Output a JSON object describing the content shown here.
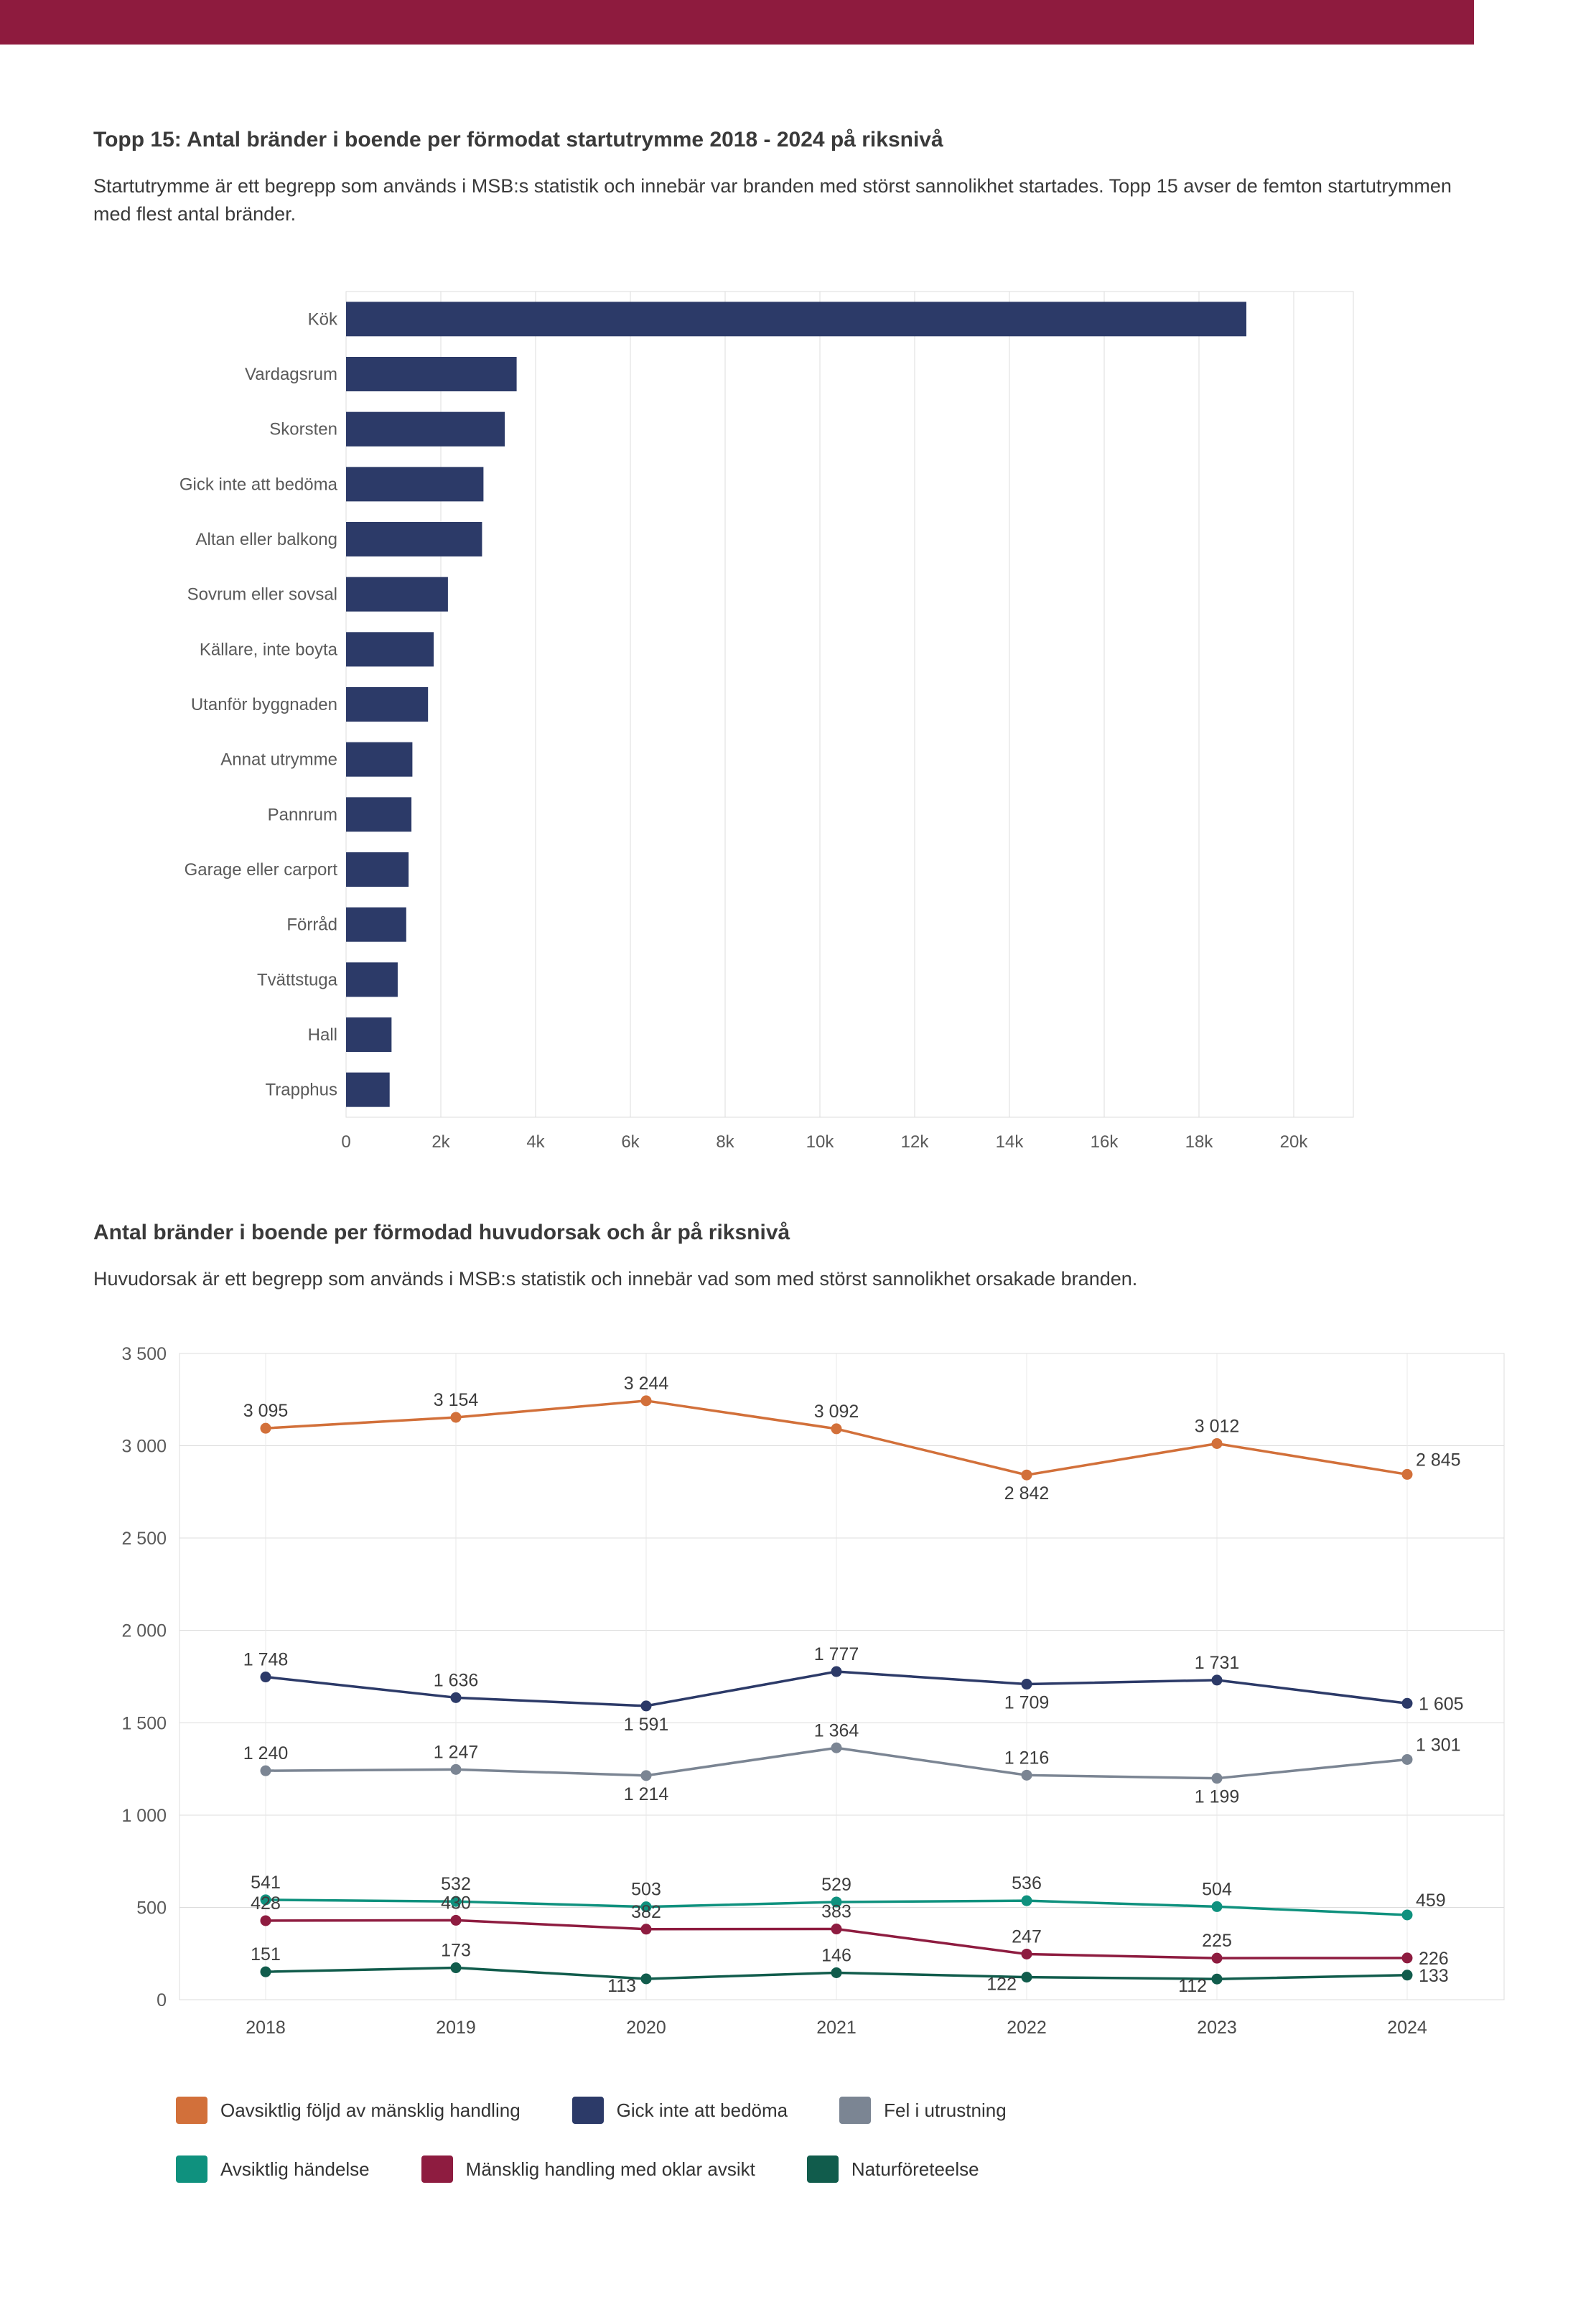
{
  "page": {
    "header_color": "#8e1b3e"
  },
  "section1": {
    "title": "Topp 15: Antal bränder i boende per förmodat startutrymme 2018 - 2024 på riksnivå",
    "subtitle": "Startutrymme är ett begrepp som används i MSB:s statistik och innebär var branden med störst sannolikhet startades. Topp 15 avser de femton startutrymmen med flest antal bränder."
  },
  "section2": {
    "title": "Antal bränder i boende per förmodad huvudorsak och år på riksnivå",
    "subtitle": "Huvudorsak är ett begrepp som används i MSB:s statistik och innebär vad som med störst sannolikhet orsakade branden."
  },
  "chart_data": [
    {
      "type": "bar",
      "orientation": "horizontal",
      "title": "Topp 15: Antal bränder i boende per förmodat startutrymme 2018 - 2024 på riksnivå",
      "categories": [
        "Kök",
        "Vardagsrum",
        "Skorsten",
        "Gick inte att bedöma",
        "Altan eller balkong",
        "Sovrum eller sovsal",
        "Källare, inte boyta",
        "Utanför byggnaden",
        "Annat utrymme",
        "Pannrum",
        "Garage eller carport",
        "Förråd",
        "Tvättstuga",
        "Hall",
        "Trapphus"
      ],
      "values": [
        19000,
        3600,
        3350,
        2900,
        2870,
        2150,
        1850,
        1730,
        1400,
        1380,
        1320,
        1270,
        1090,
        960,
        920
      ],
      "xlim": [
        0,
        20000
      ],
      "xticks": [
        0,
        2000,
        4000,
        6000,
        8000,
        10000,
        12000,
        14000,
        16000,
        18000,
        20000
      ],
      "xtick_labels": [
        "0",
        "2k",
        "4k",
        "6k",
        "8k",
        "10k",
        "12k",
        "14k",
        "16k",
        "18k",
        "20k"
      ],
      "bar_color": "#2c3a68",
      "grid": true,
      "xlabel": "",
      "ylabel": ""
    },
    {
      "type": "line",
      "title": "Antal bränder i boende per förmodad huvudorsak och år på riksnivå",
      "categories": [
        "2018",
        "2019",
        "2020",
        "2021",
        "2022",
        "2023",
        "2024"
      ],
      "series": [
        {
          "name": "Oavsiktlig följd av mänsklig handling",
          "color": "#d2703a",
          "values": [
            3095,
            3154,
            3244,
            3092,
            2842,
            3012,
            2845
          ]
        },
        {
          "name": "Gick inte att bedöma",
          "color": "#2c3a68",
          "values": [
            1748,
            1636,
            1591,
            1777,
            1709,
            1731,
            1605
          ]
        },
        {
          "name": "Fel i utrustning",
          "color": "#7b8593",
          "values": [
            1240,
            1247,
            1214,
            1364,
            1216,
            1199,
            1301
          ]
        },
        {
          "name": "Avsiktlig händelse",
          "color": "#0f917e",
          "values": [
            541,
            532,
            503,
            529,
            536,
            504,
            459
          ]
        },
        {
          "name": "Mänsklig handling med oklar avsikt",
          "color": "#8e1c40",
          "values": [
            428,
            430,
            382,
            383,
            247,
            225,
            226
          ]
        },
        {
          "name": "Naturföreteelse",
          "color": "#115c4c",
          "values": [
            151,
            173,
            113,
            146,
            122,
            112,
            133
          ]
        }
      ],
      "ylim": [
        0,
        3500
      ],
      "yticks": [
        0,
        500,
        1000,
        1500,
        2000,
        2500,
        3000,
        3500
      ],
      "ytick_labels": [
        "0",
        "500",
        "1 000",
        "1 500",
        "2 000",
        "2 500",
        "3 000",
        "3 500"
      ],
      "grid": true,
      "data_labels": true,
      "legend_position": "bottom",
      "legend_rows": [
        [
          "Oavsiktlig följd av mänsklig handling",
          "Gick inte att bedöma",
          "Fel i utrustning"
        ],
        [
          "Avsiktlig händelse",
          "Mänsklig handling med oklar avsikt",
          "Naturföreteelse"
        ]
      ]
    }
  ]
}
